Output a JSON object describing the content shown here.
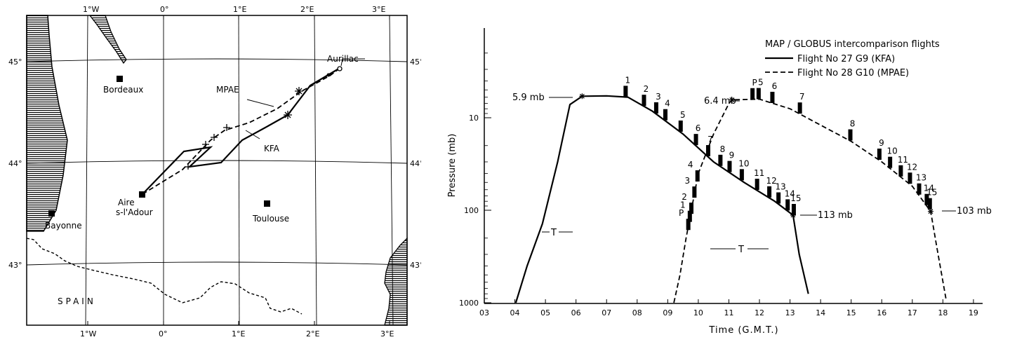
{
  "map": {
    "lon_labels": [
      "1°W",
      "0°",
      "1°E",
      "2°E",
      "3°E"
    ],
    "lat_labels": [
      "45°",
      "44°",
      "43°"
    ],
    "places": {
      "bordeaux": "Bordeaux",
      "aurillac": "Aurillac",
      "aire_line1": "Aire",
      "aire_line2": "s-l'Adour",
      "bayonne": "Bayonne",
      "toulouse": "Toulouse",
      "spain": "SPAIN"
    },
    "track_labels": {
      "mpae": "MPAE",
      "kfa": "KFA"
    }
  },
  "chart_data": {
    "type": "line",
    "title": "MAP / GLOBUS intercomparison flights",
    "legend": [
      {
        "label": "Flight No 27 G9 (KFA)",
        "style": "solid"
      },
      {
        "label": "Flight No 28 G10 (MPAE)",
        "style": "dashed"
      }
    ],
    "xlabel": "Time (G.M.T.)",
    "ylabel": "Pressure (mb)",
    "x_ticks": [
      "03",
      "04",
      "05",
      "06",
      "07",
      "08",
      "09",
      "10",
      "11",
      "12",
      "13",
      "14",
      "15",
      "16",
      "17",
      "18",
      "19"
    ],
    "y_ticks": [
      "10",
      "100",
      "1000"
    ],
    "y_scale": "log",
    "annotations": {
      "kfa_top": "5.9 mb",
      "mpae_top": "6.4 mb",
      "kfa_end": "113 mb",
      "mpae_end": "103 mb",
      "kfa_T": "T",
      "mpae_T": "T"
    },
    "series": [
      {
        "name": "Flight No 27 G9 (KFA)",
        "style": "solid",
        "points": [
          [
            4.03,
            1000
          ],
          [
            4.4,
            400
          ],
          [
            4.9,
            140
          ],
          [
            5.4,
            30
          ],
          [
            5.8,
            7.2
          ],
          [
            6.2,
            5.85
          ],
          [
            7.0,
            5.8
          ],
          [
            7.7,
            6.0
          ],
          [
            8.5,
            8.5
          ],
          [
            9.5,
            15
          ],
          [
            10.5,
            30
          ],
          [
            11.5,
            50
          ],
          [
            12.5,
            80
          ],
          [
            13.1,
            113
          ],
          [
            13.3,
            300
          ],
          [
            13.6,
            800
          ]
        ],
        "sample_labels": [
          "1",
          "2",
          "3",
          "4",
          "5",
          "6",
          "7",
          "8",
          "9",
          "10",
          "11",
          "12",
          "13",
          "14",
          "15"
        ],
        "sample_times": [
          7.6,
          8.2,
          8.6,
          8.9,
          9.4,
          9.9,
          10.3,
          10.7,
          11.0,
          11.4,
          11.9,
          12.3,
          12.6,
          12.9,
          13.1
        ]
      },
      {
        "name": "Flight No 28 G10 (MPAE)",
        "style": "dashed",
        "points": [
          [
            9.2,
            1000
          ],
          [
            9.4,
            500
          ],
          [
            9.6,
            200
          ],
          [
            10.0,
            40
          ],
          [
            10.5,
            15
          ],
          [
            11.0,
            7.0
          ],
          [
            11.1,
            6.4
          ],
          [
            12.0,
            6.3
          ],
          [
            13.0,
            8.0
          ],
          [
            14.0,
            12
          ],
          [
            15.0,
            18
          ],
          [
            16.0,
            30
          ],
          [
            17.0,
            55
          ],
          [
            17.6,
            103
          ],
          [
            17.8,
            250
          ],
          [
            18.1,
            900
          ]
        ],
        "sample_labels": [
          "P",
          "1",
          "2",
          "3",
          "4",
          "P",
          "5",
          "6",
          "7",
          "8",
          "9",
          "10",
          "11",
          "12",
          "13",
          "14",
          "15"
        ],
        "sample_times": [
          9.65,
          9.7,
          9.75,
          9.85,
          9.95,
          11.75,
          11.95,
          12.4,
          13.3,
          14.95,
          15.9,
          16.25,
          16.6,
          16.9,
          17.2,
          17.45,
          17.55
        ]
      }
    ]
  }
}
